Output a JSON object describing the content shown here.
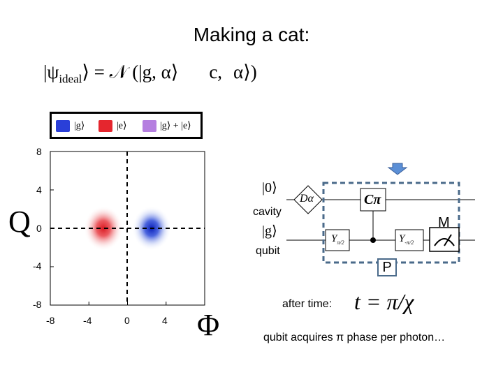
{
  "slide": {
    "title": "Making a cat:",
    "equation": {
      "psi": "|ψ",
      "psi_sub": "ideal",
      "psi_close": "⟩ = 𝒩 (|g, α⟩",
      "second": "c,",
      "third": "α⟩)"
    },
    "legend": {
      "items": [
        {
          "label": "|g⟩",
          "color": "#2a3fd8"
        },
        {
          "label": "|e⟩",
          "color": "#e5262e"
        },
        {
          "label": "|g⟩ + |e⟩",
          "color": "#b57fe0"
        }
      ]
    },
    "wigner": {
      "x_label": "Φ",
      "y_label": "Q",
      "x_ticks": [
        "-8",
        "-4",
        "0",
        "4"
      ],
      "y_ticks": [
        "8",
        "4",
        "0",
        "-4",
        "-8"
      ],
      "blobs": [
        {
          "x": -2.5,
          "y": 0,
          "color": "#e5262e"
        },
        {
          "x": 2.5,
          "y": 0,
          "color": "#1f3fd6"
        }
      ]
    },
    "circuit": {
      "wire_cavity_label": "cavity",
      "wire_qubit_label": "qubit",
      "cavity_init": "|0⟩",
      "qubit_init": "|g⟩",
      "displacement_gate": "Dα",
      "cpi_gate": "Cπ",
      "y_gate_1": "Y",
      "y_gate_1_sub": "π/2",
      "y_gate_2": "Y",
      "y_gate_2_sub": "-π/2",
      "measure_label": "M",
      "box_label": "P",
      "accent_color": "#4a6a8a",
      "arrow_color": "#5b8fd6"
    },
    "time": {
      "prefix": "after time:",
      "equation": "t = π/χ"
    },
    "footer": "qubit acquires π phase per photon…"
  }
}
